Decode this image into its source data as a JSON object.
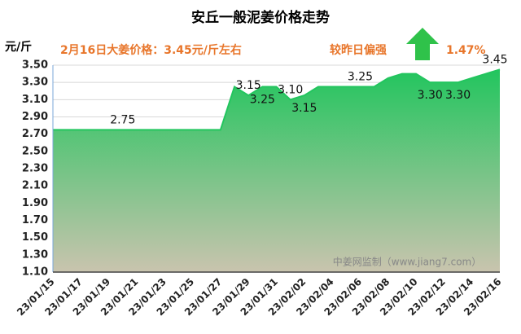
{
  "chart_data": {
    "type": "area",
    "title": "安丘一般泥姜价格走势",
    "y_label": "元/斤",
    "subtitle": "2月16日大姜价格：3.45元/斤左右",
    "trend_text": "较昨日偏强",
    "change": "1.47%",
    "watermark": "中姜网监制（www.jiang7.com）",
    "categories": [
      "23/01/15",
      null,
      "23/01/17",
      null,
      "23/01/19",
      null,
      "23/01/21",
      null,
      "23/01/23",
      null,
      "23/01/25",
      null,
      "23/01/27",
      null,
      "23/01/29",
      null,
      "23/01/31",
      null,
      "23/02/02",
      null,
      "23/02/04",
      null,
      "23/02/06",
      null,
      "23/02/08",
      null,
      "23/02/10",
      null,
      "23/02/12",
      null,
      "23/02/14",
      null,
      "23/02/16"
    ],
    "values": [
      2.75,
      2.75,
      2.75,
      2.75,
      2.75,
      2.75,
      2.75,
      2.75,
      2.75,
      2.75,
      2.75,
      2.75,
      2.75,
      3.25,
      3.15,
      3.25,
      3.25,
      3.1,
      3.15,
      3.25,
      3.25,
      3.25,
      3.25,
      3.25,
      3.35,
      3.4,
      3.4,
      3.3,
      3.3,
      3.3,
      3.35,
      3.4,
      3.45
    ],
    "value_labels": [
      null,
      null,
      null,
      null,
      null,
      "2.75",
      null,
      null,
      null,
      null,
      null,
      null,
      null,
      null,
      "3.15",
      "3.25",
      null,
      "3.10",
      "3.15",
      null,
      null,
      null,
      "3.25",
      null,
      null,
      null,
      null,
      "3.30",
      null,
      "3.30",
      null,
      null,
      "3.45"
    ],
    "color": "#22c55e",
    "ylim": [
      1.1,
      3.5
    ],
    "yticks": [
      {
        "value": 1.1,
        "label": "1.10"
      },
      {
        "value": 1.3,
        "label": "1.30"
      },
      {
        "value": 1.5,
        "label": "1.50"
      },
      {
        "value": 1.7,
        "label": "1.70"
      },
      {
        "value": 1.9,
        "label": "1.90"
      },
      {
        "value": 2.1,
        "label": "2.10"
      },
      {
        "value": 2.3,
        "label": "2.30"
      },
      {
        "value": 2.5,
        "label": "2.50"
      },
      {
        "value": 2.7,
        "label": "2.70"
      },
      {
        "value": 2.9,
        "label": "2.90"
      },
      {
        "value": 3.1,
        "label": "3.10"
      },
      {
        "value": 3.3,
        "label": "3.30"
      },
      {
        "value": 3.5,
        "label": "3.50"
      }
    ],
    "grid": true
  }
}
